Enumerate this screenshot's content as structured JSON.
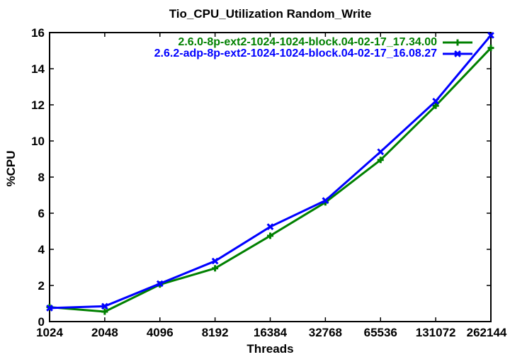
{
  "chart_data": {
    "type": "line",
    "title": "Tio_CPU_Utilization Random_Write",
    "xlabel": "Threads",
    "ylabel": "%CPU",
    "categories": [
      "1024",
      "2048",
      "4096",
      "8192",
      "16384",
      "32768",
      "65536",
      "131072",
      "262144"
    ],
    "x_scale": "categorical-log2-spaced",
    "ylim": [
      0,
      16
    ],
    "yticks": [
      0,
      2,
      4,
      6,
      8,
      10,
      12,
      14,
      16
    ],
    "grid": false,
    "legend_position": "top-right-inside",
    "background_color": "#ffffff",
    "axis_color": "#000000",
    "series": [
      {
        "name": "2.6.0-8p-ext2-1024-1024-block.04-02-17_17.34.00",
        "color": "#008000",
        "marker": "plus",
        "values": [
          0.8,
          0.55,
          2.05,
          2.95,
          4.75,
          6.6,
          8.95,
          11.95,
          15.15
        ]
      },
      {
        "name": "2.6.2-adp-8p-ext2-1024-1024-block.04-02-17_16.08.27",
        "color": "#0000ff",
        "marker": "x",
        "values": [
          0.75,
          0.85,
          2.1,
          3.35,
          5.25,
          6.7,
          9.4,
          12.2,
          15.85
        ]
      }
    ]
  }
}
